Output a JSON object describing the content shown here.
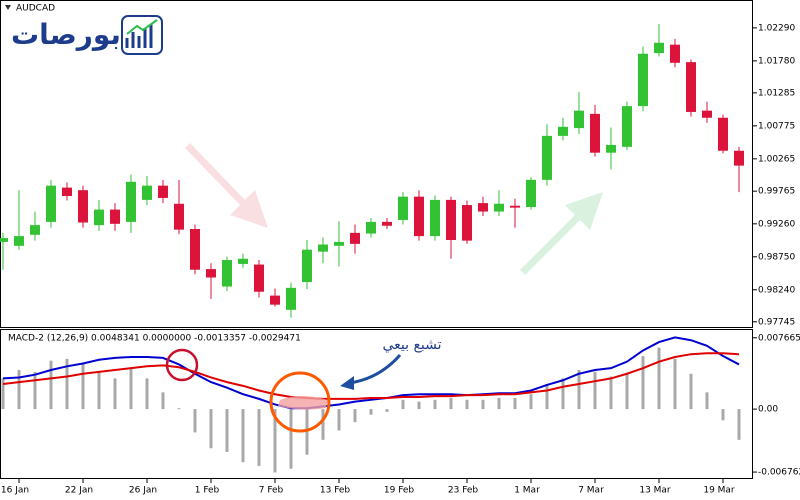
{
  "logo": "بورصات",
  "chart_data": [
    {
      "type": "candlestick",
      "title": "AUDCAD",
      "categories": [
        null,
        "16 Jan",
        null,
        null,
        null,
        "22 Jan",
        null,
        null,
        null,
        "26 Jan",
        null,
        null,
        null,
        "1 Feb",
        null,
        null,
        null,
        "7 Feb",
        null,
        null,
        null,
        "13 Feb",
        null,
        null,
        null,
        "19 Feb",
        null,
        null,
        null,
        "23 Feb",
        null,
        null,
        null,
        "1 Mar",
        null,
        null,
        null,
        "7 Mar",
        null,
        null,
        null,
        "13 Mar",
        null,
        null,
        null,
        "19 Mar",
        null
      ],
      "open": [
        0.9898,
        0.9892,
        0.9909,
        0.9929,
        0.9982,
        0.9978,
        0.9924,
        0.9948,
        0.9929,
        0.9963,
        0.9985,
        0.9957,
        0.9918,
        0.9856,
        0.9829,
        0.9864,
        0.9863,
        0.9815,
        0.9793,
        0.9836,
        0.9883,
        0.9892,
        0.9912,
        0.9911,
        0.9929,
        0.9932,
        0.9968,
        0.9907,
        0.9963,
        0.9955,
        0.9958,
        0.9945,
        0.9954,
        0.9952,
        0.9994,
        1.0062,
        1.0074,
        1.0096,
        1.0036,
        1.0045,
        1.0108,
        1.019,
        1.0203,
        1.0176,
        1.0101,
        1.009,
        1.0039
      ],
      "high": [
        0.9912,
        0.9978,
        0.9945,
        0.9994,
        0.999,
        0.9985,
        0.9963,
        0.9958,
        1.0002,
        1.0,
        0.9994,
        0.9994,
        0.9925,
        0.9865,
        0.9875,
        0.988,
        0.987,
        0.9826,
        0.9835,
        0.9901,
        0.9905,
        0.993,
        0.9925,
        0.9935,
        0.9935,
        0.9975,
        0.9978,
        0.997,
        0.9968,
        0.9962,
        0.9968,
        0.9978,
        0.9965,
        0.9998,
        1.008,
        1.009,
        1.013,
        1.011,
        1.0075,
        1.0115,
        1.02,
        1.0235,
        1.0212,
        1.018,
        1.0115,
        1.0095,
        1.0045
      ],
      "low": [
        0.9855,
        0.9886,
        0.99,
        0.992,
        0.9962,
        0.992,
        0.9915,
        0.9915,
        0.9912,
        0.9955,
        0.9958,
        0.991,
        0.9848,
        0.981,
        0.9822,
        0.9858,
        0.9812,
        0.9798,
        0.9781,
        0.9825,
        0.9865,
        0.986,
        0.988,
        0.9905,
        0.9918,
        0.9925,
        0.99,
        0.99,
        0.9872,
        0.9895,
        0.9938,
        0.9938,
        0.992,
        0.9948,
        0.9985,
        1.0055,
        1.0065,
        1.003,
        1.001,
        1.004,
        1.01,
        1.0185,
        1.0168,
        1.0092,
        1.0082,
        1.0035,
        0.9975
      ],
      "close": [
        0.9904,
        0.9907,
        0.9924,
        0.9985,
        0.9969,
        0.9928,
        0.9948,
        0.9926,
        0.9991,
        0.9985,
        0.9966,
        0.9917,
        0.9855,
        0.9843,
        0.987,
        0.9872,
        0.9821,
        0.9801,
        0.9827,
        0.9886,
        0.9894,
        0.9898,
        0.9895,
        0.9929,
        0.9923,
        0.9968,
        0.9907,
        0.9963,
        0.9901,
        0.99,
        0.9945,
        0.9957,
        0.9951,
        0.9994,
        1.0062,
        1.0076,
        1.0101,
        1.0036,
        1.0048,
        1.0108,
        1.0189,
        1.0206,
        1.0175,
        1.0099,
        1.009,
        1.0039,
        1.0016
      ],
      "up_color": "#33c233",
      "down_color": "#dc143c",
      "ylim": [
        0.9768,
        1.0269
      ],
      "yticks": [
        {
          "value": 1.0229,
          "label": "1.02290"
        },
        {
          "value": 1.0178,
          "label": "1.01780"
        },
        1.01285,
        1.00775,
        1.00265,
        0.99765,
        {
          "value": 0.9926,
          "label": "0.99260"
        },
        {
          "value": 0.9875,
          "label": "0.98750"
        },
        {
          "value": 0.9824,
          "label": "0.98240"
        },
        0.97745
      ]
    },
    {
      "type": "macd",
      "title": "MACD-2 (12,26,9) 0.0048341 0.0000000 -0.0013357 -0.0029471",
      "annotation": "تشبع بيعي",
      "histogram": [
        0.0033,
        0.0042,
        0.004,
        0.0052,
        0.0054,
        0.005,
        0.004,
        0.0033,
        0.0044,
        0.0033,
        0.0018,
        0.0001,
        -0.0025,
        -0.0042,
        -0.0046,
        -0.0057,
        -0.0061,
        -0.0068,
        -0.0064,
        -0.0049,
        -0.0033,
        -0.0023,
        -0.0014,
        -0.0006,
        -0.0003,
        0.001,
        0.0008,
        0.001,
        0.0012,
        0.001,
        0.001,
        0.0012,
        0.0012,
        0.0016,
        0.0027,
        0.0033,
        0.0042,
        0.004,
        0.0035,
        0.0038,
        0.0057,
        0.0066,
        0.0054,
        0.0038,
        0.0018,
        -0.0012,
        -0.0033
      ],
      "histogram_color": "#a8a8a8",
      "series": [
        {
          "color": "#0000d0",
          "values": [
            0.0033,
            0.0034,
            0.0037,
            0.0042,
            0.0046,
            0.0049,
            0.0053,
            0.0055,
            0.0056,
            0.0056,
            0.0055,
            0.0048,
            0.0038,
            0.0029,
            0.0023,
            0.0016,
            0.0011,
            0.0005,
            0.0001,
            0.0001,
            0.0003,
            0.0005,
            0.0008,
            0.001,
            0.0012,
            0.0015,
            0.0016,
            0.0016,
            0.0016,
            0.0015,
            0.0016,
            0.0017,
            0.0017,
            0.002,
            0.0026,
            0.0031,
            0.0038,
            0.0042,
            0.0044,
            0.0051,
            0.0063,
            0.0072,
            0.0077,
            0.0074,
            0.0068,
            0.0057,
            0.0048
          ]
        },
        {
          "color": "#e00000",
          "values": [
            0.0027,
            0.0029,
            0.0031,
            0.0033,
            0.0035,
            0.0038,
            0.004,
            0.0042,
            0.0044,
            0.0046,
            0.0047,
            0.0045,
            0.004,
            0.0034,
            0.0029,
            0.0025,
            0.002,
            0.0016,
            0.0013,
            0.0012,
            0.0011,
            0.0011,
            0.0011,
            0.0012,
            0.0012,
            0.0013,
            0.0013,
            0.0014,
            0.0014,
            0.0015,
            0.0015,
            0.0016,
            0.0016,
            0.0018,
            0.002,
            0.0024,
            0.0027,
            0.003,
            0.0033,
            0.0038,
            0.0044,
            0.0051,
            0.0056,
            0.0059,
            0.006,
            0.006,
            0.0059
          ]
        }
      ],
      "ylim": [
        -0.0074,
        0.0085
      ],
      "yticks": [
        0.007665,
        {
          "value": 0,
          "label": "0.00"
        },
        -0.006762
      ]
    }
  ]
}
